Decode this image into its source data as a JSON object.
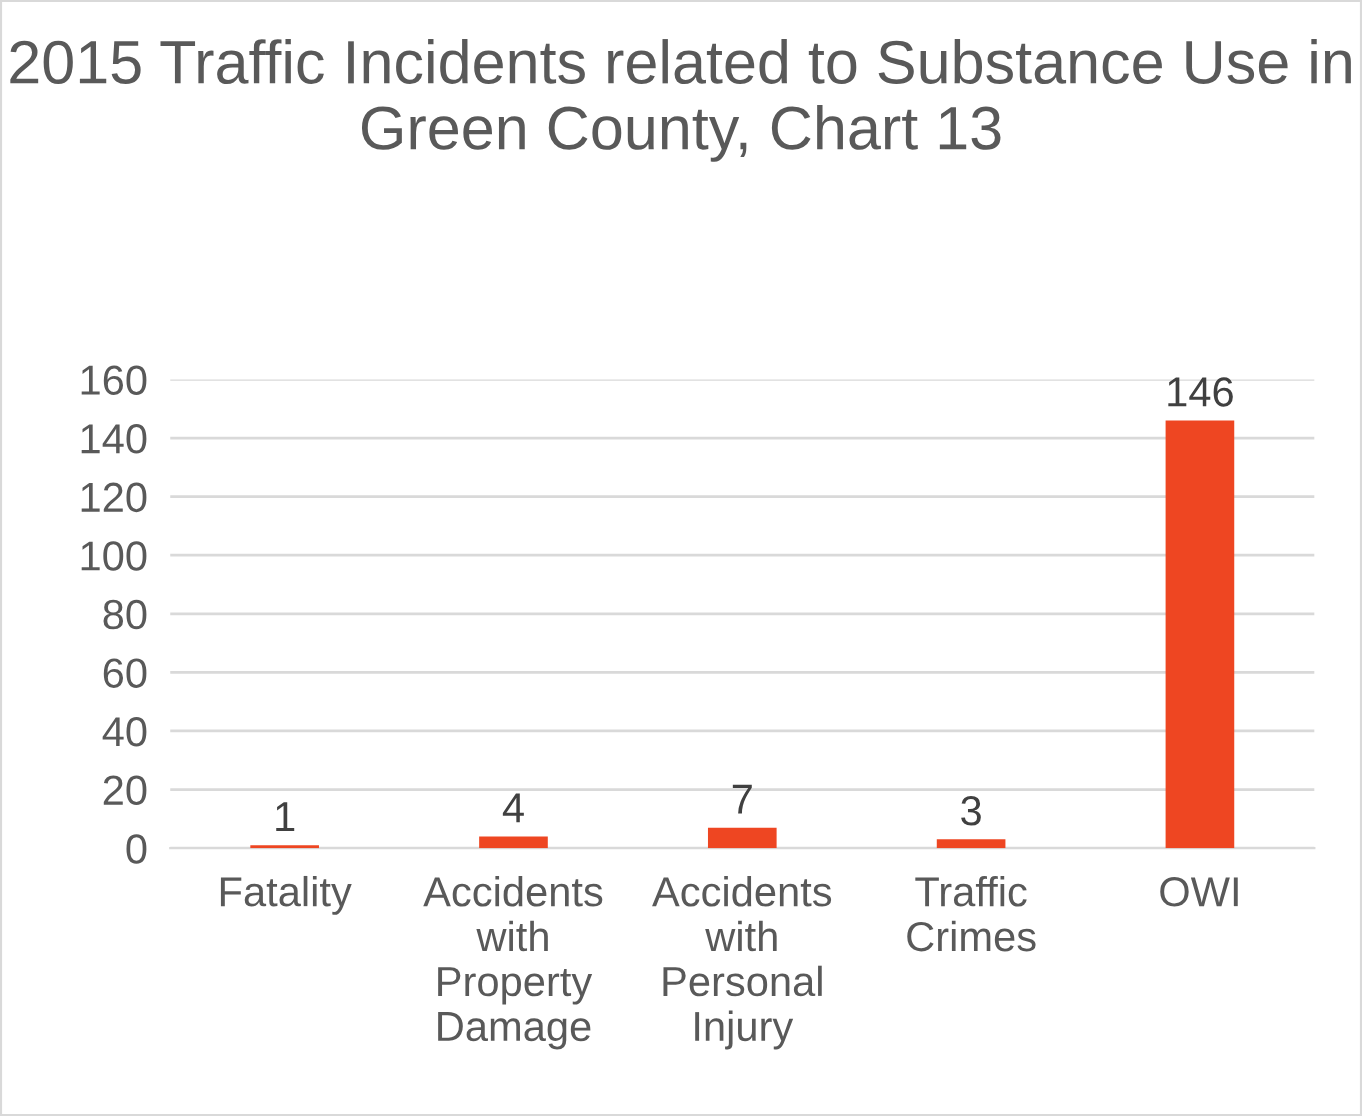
{
  "chart_data": {
    "type": "bar",
    "title": "2015 Traffic Incidents related to Substance Use in Green County, Chart 13",
    "categories": [
      "Fatality",
      "Accidents with Property Damage",
      "Accidents with Personal Injury",
      "Traffic Crimes",
      "OWI"
    ],
    "values": [
      1,
      4,
      7,
      3,
      146
    ],
    "color": "#ee4622",
    "ylim": [
      0,
      160
    ],
    "yticks": [
      0,
      20,
      40,
      60,
      80,
      100,
      120,
      140,
      160
    ],
    "grid": "y",
    "data_labels": true
  }
}
